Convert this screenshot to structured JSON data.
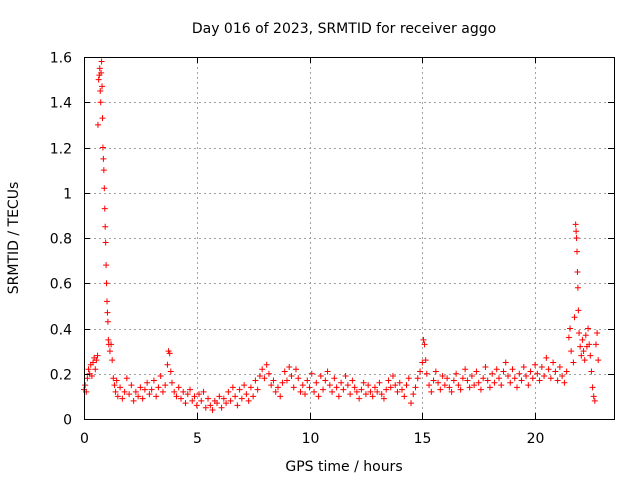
{
  "chart_data": {
    "type": "scatter",
    "title": "Day 016 of 2023, SRMTID for receiver aggo",
    "xlabel": "GPS time / hours",
    "ylabel": "SRMTID / TECUs",
    "xlim": [
      0,
      23.5
    ],
    "ylim": [
      0,
      1.6
    ],
    "xticks": [
      0,
      5,
      10,
      15,
      20
    ],
    "yticks": [
      0,
      0.2,
      0.4,
      0.6,
      0.8,
      1,
      1.2,
      1.4,
      1.6
    ],
    "xtick_labels": [
      "0",
      "5",
      "10",
      "15",
      "20"
    ],
    "ytick_labels": [
      "0",
      "0.2",
      "0.4",
      "0.6",
      "0.8",
      "1",
      "1.2",
      "1.4",
      "1.6"
    ],
    "grid": true,
    "marker": "+",
    "color": "#ff0000",
    "series": [
      {
        "name": "SRMTID",
        "points": [
          [
            0.0,
            0.13
          ],
          [
            0.05,
            0.15
          ],
          [
            0.1,
            0.12
          ],
          [
            0.15,
            0.18
          ],
          [
            0.2,
            0.22
          ],
          [
            0.25,
            0.2
          ],
          [
            0.3,
            0.24
          ],
          [
            0.35,
            0.19
          ],
          [
            0.4,
            0.25
          ],
          [
            0.45,
            0.27
          ],
          [
            0.5,
            0.22
          ],
          [
            0.55,
            0.26
          ],
          [
            0.6,
            0.28
          ],
          [
            0.62,
            1.3
          ],
          [
            0.65,
            1.5
          ],
          [
            0.68,
            1.52
          ],
          [
            0.7,
            1.55
          ],
          [
            0.72,
            1.45
          ],
          [
            0.74,
            1.4
          ],
          [
            0.76,
            1.53
          ],
          [
            0.78,
            1.58
          ],
          [
            0.8,
            1.47
          ],
          [
            0.82,
            1.33
          ],
          [
            0.84,
            1.2
          ],
          [
            0.86,
            1.15
          ],
          [
            0.88,
            1.1
          ],
          [
            0.9,
            1.02
          ],
          [
            0.92,
            0.93
          ],
          [
            0.94,
            0.85
          ],
          [
            0.96,
            0.78
          ],
          [
            0.98,
            0.68
          ],
          [
            1.0,
            0.6
          ],
          [
            1.02,
            0.52
          ],
          [
            1.04,
            0.47
          ],
          [
            1.06,
            0.43
          ],
          [
            1.08,
            0.35
          ],
          [
            1.1,
            0.33
          ],
          [
            1.15,
            0.3
          ],
          [
            1.2,
            0.33
          ],
          [
            1.25,
            0.26
          ],
          [
            1.3,
            0.18
          ],
          [
            1.35,
            0.15
          ],
          [
            1.4,
            0.12
          ],
          [
            1.45,
            0.17
          ],
          [
            1.5,
            0.1
          ],
          [
            1.6,
            0.14
          ],
          [
            1.7,
            0.09
          ],
          [
            1.8,
            0.12
          ],
          [
            1.9,
            0.18
          ],
          [
            2.0,
            0.11
          ],
          [
            2.1,
            0.15
          ],
          [
            2.2,
            0.08
          ],
          [
            2.3,
            0.12
          ],
          [
            2.4,
            0.1
          ],
          [
            2.5,
            0.14
          ],
          [
            2.6,
            0.09
          ],
          [
            2.7,
            0.13
          ],
          [
            2.8,
            0.16
          ],
          [
            2.9,
            0.11
          ],
          [
            3.0,
            0.13
          ],
          [
            3.1,
            0.17
          ],
          [
            3.2,
            0.1
          ],
          [
            3.3,
            0.14
          ],
          [
            3.4,
            0.19
          ],
          [
            3.5,
            0.12
          ],
          [
            3.6,
            0.15
          ],
          [
            3.7,
            0.24
          ],
          [
            3.75,
            0.3
          ],
          [
            3.8,
            0.29
          ],
          [
            3.85,
            0.21
          ],
          [
            3.9,
            0.16
          ],
          [
            4.0,
            0.12
          ],
          [
            4.1,
            0.1
          ],
          [
            4.2,
            0.14
          ],
          [
            4.3,
            0.09
          ],
          [
            4.4,
            0.12
          ],
          [
            4.5,
            0.07
          ],
          [
            4.6,
            0.11
          ],
          [
            4.7,
            0.13
          ],
          [
            4.8,
            0.08
          ],
          [
            4.9,
            0.1
          ],
          [
            5.0,
            0.06
          ],
          [
            5.1,
            0.11
          ],
          [
            5.2,
            0.08
          ],
          [
            5.3,
            0.12
          ],
          [
            5.4,
            0.05
          ],
          [
            5.5,
            0.09
          ],
          [
            5.6,
            0.06
          ],
          [
            5.7,
            0.04
          ],
          [
            5.8,
            0.08
          ],
          [
            5.9,
            0.07
          ],
          [
            6.0,
            0.1
          ],
          [
            6.1,
            0.05
          ],
          [
            6.2,
            0.09
          ],
          [
            6.3,
            0.07
          ],
          [
            6.4,
            0.12
          ],
          [
            6.5,
            0.08
          ],
          [
            6.6,
            0.14
          ],
          [
            6.7,
            0.1
          ],
          [
            6.8,
            0.06
          ],
          [
            6.9,
            0.13
          ],
          [
            7.0,
            0.09
          ],
          [
            7.1,
            0.15
          ],
          [
            7.2,
            0.11
          ],
          [
            7.3,
            0.08
          ],
          [
            7.4,
            0.14
          ],
          [
            7.5,
            0.1
          ],
          [
            7.6,
            0.17
          ],
          [
            7.7,
            0.13
          ],
          [
            7.8,
            0.19
          ],
          [
            7.9,
            0.22
          ],
          [
            8.0,
            0.18
          ],
          [
            8.1,
            0.24
          ],
          [
            8.2,
            0.2
          ],
          [
            8.3,
            0.15
          ],
          [
            8.4,
            0.17
          ],
          [
            8.5,
            0.12
          ],
          [
            8.6,
            0.14
          ],
          [
            8.7,
            0.1
          ],
          [
            8.8,
            0.16
          ],
          [
            8.9,
            0.21
          ],
          [
            9.0,
            0.17
          ],
          [
            9.1,
            0.23
          ],
          [
            9.2,
            0.19
          ],
          [
            9.3,
            0.14
          ],
          [
            9.4,
            0.22
          ],
          [
            9.5,
            0.18
          ],
          [
            9.6,
            0.12
          ],
          [
            9.7,
            0.15
          ],
          [
            9.8,
            0.11
          ],
          [
            9.9,
            0.17
          ],
          [
            10.0,
            0.14
          ],
          [
            10.1,
            0.2
          ],
          [
            10.2,
            0.12
          ],
          [
            10.3,
            0.16
          ],
          [
            10.4,
            0.1
          ],
          [
            10.5,
            0.19
          ],
          [
            10.6,
            0.13
          ],
          [
            10.7,
            0.17
          ],
          [
            10.8,
            0.21
          ],
          [
            10.9,
            0.15
          ],
          [
            11.0,
            0.12
          ],
          [
            11.1,
            0.18
          ],
          [
            11.2,
            0.14
          ],
          [
            11.3,
            0.1
          ],
          [
            11.4,
            0.16
          ],
          [
            11.5,
            0.13
          ],
          [
            11.6,
            0.19
          ],
          [
            11.7,
            0.15
          ],
          [
            11.8,
            0.11
          ],
          [
            11.9,
            0.17
          ],
          [
            12.0,
            0.14
          ],
          [
            12.1,
            0.12
          ],
          [
            12.2,
            0.09
          ],
          [
            12.3,
            0.13
          ],
          [
            12.4,
            0.16
          ],
          [
            12.5,
            0.11
          ],
          [
            12.6,
            0.15
          ],
          [
            12.7,
            0.12
          ],
          [
            12.8,
            0.1
          ],
          [
            12.9,
            0.14
          ],
          [
            13.0,
            0.12
          ],
          [
            13.1,
            0.16
          ],
          [
            13.2,
            0.11
          ],
          [
            13.3,
            0.09
          ],
          [
            13.4,
            0.13
          ],
          [
            13.5,
            0.17
          ],
          [
            13.6,
            0.14
          ],
          [
            13.7,
            0.19
          ],
          [
            13.8,
            0.15
          ],
          [
            13.9,
            0.12
          ],
          [
            14.0,
            0.16
          ],
          [
            14.1,
            0.13
          ],
          [
            14.2,
            0.1
          ],
          [
            14.3,
            0.15
          ],
          [
            14.4,
            0.18
          ],
          [
            14.5,
            0.07
          ],
          [
            14.6,
            0.11
          ],
          [
            14.7,
            0.14
          ],
          [
            14.8,
            0.18
          ],
          [
            14.9,
            0.21
          ],
          [
            15.0,
            0.25
          ],
          [
            15.05,
            0.35
          ],
          [
            15.1,
            0.33
          ],
          [
            15.15,
            0.26
          ],
          [
            15.2,
            0.2
          ],
          [
            15.3,
            0.15
          ],
          [
            15.4,
            0.12
          ],
          [
            15.5,
            0.17
          ],
          [
            15.6,
            0.21
          ],
          [
            15.7,
            0.16
          ],
          [
            15.8,
            0.13
          ],
          [
            15.9,
            0.19
          ],
          [
            16.0,
            0.15
          ],
          [
            16.1,
            0.18
          ],
          [
            16.2,
            0.14
          ],
          [
            16.3,
            0.12
          ],
          [
            16.4,
            0.17
          ],
          [
            16.5,
            0.2
          ],
          [
            16.6,
            0.15
          ],
          [
            16.7,
            0.13
          ],
          [
            16.8,
            0.18
          ],
          [
            16.9,
            0.22
          ],
          [
            17.0,
            0.17
          ],
          [
            17.1,
            0.14
          ],
          [
            17.2,
            0.19
          ],
          [
            17.3,
            0.15
          ],
          [
            17.4,
            0.21
          ],
          [
            17.5,
            0.16
          ],
          [
            17.6,
            0.13
          ],
          [
            17.7,
            0.18
          ],
          [
            17.8,
            0.23
          ],
          [
            17.9,
            0.17
          ],
          [
            18.0,
            0.14
          ],
          [
            18.1,
            0.2
          ],
          [
            18.2,
            0.16
          ],
          [
            18.3,
            0.22
          ],
          [
            18.4,
            0.18
          ],
          [
            18.5,
            0.15
          ],
          [
            18.6,
            0.21
          ],
          [
            18.7,
            0.25
          ],
          [
            18.8,
            0.19
          ],
          [
            18.9,
            0.16
          ],
          [
            19.0,
            0.22
          ],
          [
            19.1,
            0.18
          ],
          [
            19.2,
            0.14
          ],
          [
            19.3,
            0.2
          ],
          [
            19.4,
            0.17
          ],
          [
            19.5,
            0.23
          ],
          [
            19.6,
            0.19
          ],
          [
            19.7,
            0.15
          ],
          [
            19.8,
            0.21
          ],
          [
            19.9,
            0.18
          ],
          [
            20.0,
            0.24
          ],
          [
            20.1,
            0.2
          ],
          [
            20.2,
            0.17
          ],
          [
            20.3,
            0.23
          ],
          [
            20.4,
            0.19
          ],
          [
            20.5,
            0.27
          ],
          [
            20.6,
            0.22
          ],
          [
            20.7,
            0.18
          ],
          [
            20.8,
            0.25
          ],
          [
            20.9,
            0.21
          ],
          [
            21.0,
            0.17
          ],
          [
            21.1,
            0.23
          ],
          [
            21.2,
            0.19
          ],
          [
            21.3,
            0.16
          ],
          [
            21.4,
            0.21
          ],
          [
            21.5,
            0.36
          ],
          [
            21.55,
            0.4
          ],
          [
            21.6,
            0.3
          ],
          [
            21.7,
            0.25
          ],
          [
            21.75,
            0.45
          ],
          [
            21.8,
            0.86
          ],
          [
            21.82,
            0.83
          ],
          [
            21.84,
            0.8
          ],
          [
            21.86,
            0.74
          ],
          [
            21.88,
            0.65
          ],
          [
            21.9,
            0.58
          ],
          [
            21.92,
            0.48
          ],
          [
            21.95,
            0.38
          ],
          [
            22.0,
            0.32
          ],
          [
            22.05,
            0.28
          ],
          [
            22.1,
            0.35
          ],
          [
            22.15,
            0.3
          ],
          [
            22.2,
            0.26
          ],
          [
            22.25,
            0.37
          ],
          [
            22.3,
            0.32
          ],
          [
            22.35,
            0.4
          ],
          [
            22.4,
            0.33
          ],
          [
            22.45,
            0.28
          ],
          [
            22.5,
            0.21
          ],
          [
            22.55,
            0.14
          ],
          [
            22.6,
            0.1
          ],
          [
            22.65,
            0.08
          ],
          [
            22.7,
            0.33
          ],
          [
            22.75,
            0.38
          ],
          [
            22.8,
            0.26
          ]
        ]
      }
    ]
  }
}
